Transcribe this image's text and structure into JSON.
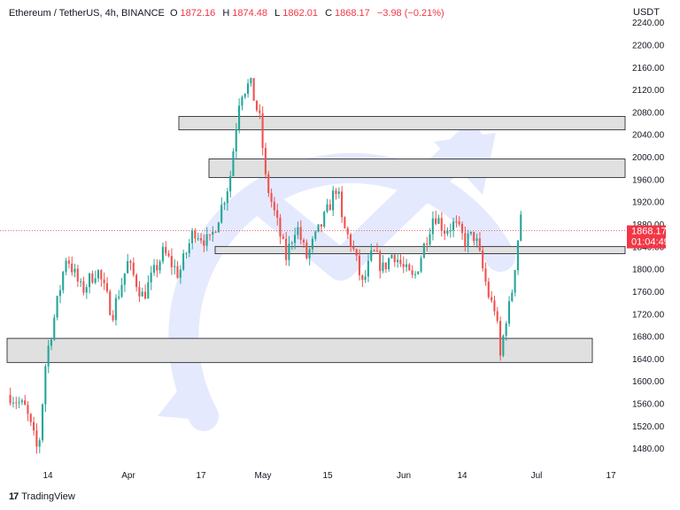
{
  "header": {
    "symbol": "Ethereum / TetherUS, 4h, BINANCE",
    "o_label": "O",
    "o_value": "1872.16",
    "h_label": "H",
    "h_value": "1874.48",
    "l_label": "L",
    "l_value": "1862.01",
    "c_label": "C",
    "c_value": "1868.17",
    "change": "−3.98 (−0.21%)"
  },
  "price_tag": {
    "price": "1868.17",
    "countdown": "01:04:49"
  },
  "footer": {
    "brand": "TradingView",
    "logo": "tradingview-logo-icon"
  },
  "colors": {
    "up": "#26a69a",
    "down": "#ef5350",
    "zone_fill": "#e0e0e0",
    "zone_stroke": "#131722",
    "watermark": "#3d5afe",
    "price_tag": "#f23645"
  },
  "chart_data": {
    "type": "candlestick",
    "currency": "USDT",
    "ylim": [
      1455,
      2245
    ],
    "y_ticks": [
      "2240.00",
      "2200.00",
      "2160.00",
      "2120.00",
      "2080.00",
      "2040.00",
      "2000.00",
      "1960.00",
      "1920.00",
      "1880.00",
      "1840.00",
      "1800.00",
      "1760.00",
      "1720.00",
      "1680.00",
      "1640.00",
      "1600.00",
      "1560.00",
      "1520.00",
      "1480.00"
    ],
    "x_ticks": [
      "14",
      "Apr",
      "17",
      "May",
      "15",
      "Jun",
      "14",
      "Jul",
      "17"
    ],
    "last_price": 1868.17,
    "zones": [
      {
        "from": 2048,
        "to": 2072
      },
      {
        "from": 1963,
        "to": 1996
      },
      {
        "from": 1827,
        "to": 1840
      },
      {
        "from": 1633,
        "to": 1676
      }
    ],
    "price_path": [
      [
        0,
        1575
      ],
      [
        0.03,
        1550
      ],
      [
        0.055,
        1470
      ],
      [
        0.07,
        1640
      ],
      [
        0.09,
        1730
      ],
      [
        0.11,
        1825
      ],
      [
        0.14,
        1760
      ],
      [
        0.17,
        1800
      ],
      [
        0.2,
        1720
      ],
      [
        0.23,
        1810
      ],
      [
        0.26,
        1750
      ],
      [
        0.3,
        1830
      ],
      [
        0.33,
        1790
      ],
      [
        0.36,
        1870
      ],
      [
        0.39,
        1845
      ],
      [
        0.41,
        1900
      ],
      [
        0.43,
        1960
      ],
      [
        0.45,
        2115
      ],
      [
        0.47,
        2130
      ],
      [
        0.49,
        2060
      ],
      [
        0.5,
        1960
      ],
      [
        0.52,
        1890
      ],
      [
        0.54,
        1820
      ],
      [
        0.56,
        1880
      ],
      [
        0.58,
        1820
      ],
      [
        0.6,
        1860
      ],
      [
        0.62,
        1900
      ],
      [
        0.64,
        1950
      ],
      [
        0.65,
        1880
      ],
      [
        0.67,
        1840
      ],
      [
        0.69,
        1770
      ],
      [
        0.71,
        1830
      ],
      [
        0.73,
        1800
      ],
      [
        0.75,
        1830
      ],
      [
        0.77,
        1800
      ],
      [
        0.79,
        1780
      ],
      [
        0.81,
        1840
      ],
      [
        0.83,
        1900
      ],
      [
        0.85,
        1870
      ],
      [
        0.87,
        1880
      ],
      [
        0.89,
        1850
      ],
      [
        0.91,
        1860
      ],
      [
        0.92,
        1820
      ],
      [
        0.93,
        1780
      ],
      [
        0.94,
        1740
      ],
      [
        0.95,
        1730
      ],
      [
        0.96,
        1640
      ],
      [
        0.97,
        1710
      ],
      [
        0.98,
        1740
      ],
      [
        0.99,
        1820
      ],
      [
        1.0,
        1900
      ]
    ]
  }
}
